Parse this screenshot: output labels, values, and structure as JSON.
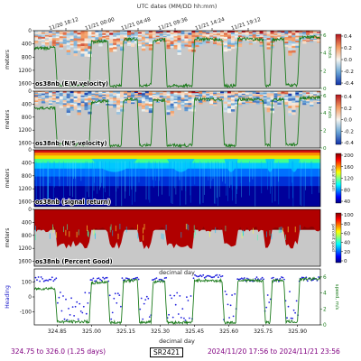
{
  "header": {
    "title": "UTC dates (MM/DD hh:mm)",
    "time_ticks": [
      "11/20 18:12",
      "11/21 00:00",
      "11/21 04:48",
      "11/21 09:36",
      "11/21 14:24",
      "11/21 19:12"
    ]
  },
  "chart_data": [
    {
      "type": "heatmap",
      "panel_label": "os38nb (E/W velocity)",
      "ylabel": "meters",
      "yticks": [
        0,
        400,
        800,
        1200,
        1600
      ],
      "ylim": [
        1750,
        0
      ],
      "colorbar": {
        "ticks": [
          "0.4",
          "0.2",
          "0.0",
          "-0.2",
          "-0.4"
        ],
        "range": [
          -0.4,
          0.4
        ],
        "colormap": "RdBu_r"
      },
      "right_axis": {
        "label": "knots",
        "ticks": [
          "6",
          "4",
          "2",
          "0"
        ],
        "range": [
          0,
          6.5
        ]
      },
      "overlay_series": {
        "name": "ship speed",
        "color": "#1a7a1a"
      }
    },
    {
      "type": "heatmap",
      "panel_label": "os38nb (N/S velocity)",
      "ylabel": "meters",
      "yticks": [
        0,
        400,
        800,
        1200,
        1600
      ],
      "ylim": [
        1750,
        0
      ],
      "colorbar": {
        "ticks": [
          "0.4",
          "0.2",
          "0.0",
          "-0.2",
          "-0.4"
        ],
        "range": [
          -0.4,
          0.4
        ],
        "colormap": "RdBu_r"
      },
      "right_axis": {
        "label": "knots",
        "ticks": [
          "6",
          "4",
          "2",
          "0"
        ],
        "range": [
          0,
          6.5
        ]
      },
      "overlay_series": {
        "name": "ship speed",
        "color": "#1a7a1a"
      }
    },
    {
      "type": "heatmap",
      "panel_label": "os38nb (signal return)",
      "ylabel": "meters",
      "yticks": [
        0,
        400,
        800,
        1200,
        1600
      ],
      "ylim": [
        1750,
        0
      ],
      "colorbar": {
        "label": "signal return",
        "ticks": [
          "200",
          "160",
          "120",
          "80",
          "40"
        ],
        "range": [
          20,
          210
        ],
        "colormap": "jet"
      }
    },
    {
      "type": "heatmap",
      "panel_label": "os38nb (Percent Good)",
      "ylabel": "meters",
      "yticks": [
        0,
        400,
        800,
        1200,
        1600
      ],
      "ylim": [
        1750,
        0
      ],
      "xlabel": "decimal day",
      "colorbar": {
        "label": "percent good",
        "ticks": [
          "100",
          "80",
          "60",
          "40",
          "20",
          "0"
        ],
        "range": [
          0,
          100
        ],
        "colormap": "jet"
      }
    },
    {
      "type": "line",
      "ylabel": "Heading",
      "ylabel_color": "#2020cc",
      "yticks": [
        "100",
        "0",
        "-100"
      ],
      "ylim": [
        -190,
        190
      ],
      "right_axis": {
        "label": "speed, m/s",
        "ticks": [
          "6",
          "4",
          "2",
          "0"
        ],
        "range": [
          0,
          7
        ]
      },
      "xlabel": "decimal day",
      "xticks": [
        "324.85",
        "325.00",
        "325.15",
        "325.30",
        "325.45",
        "325.60",
        "325.75",
        "325.90"
      ],
      "xlim": [
        324.75,
        326.0
      ],
      "series": [
        {
          "name": "heading",
          "color": "#2020dd",
          "style": "points"
        },
        {
          "name": "speed",
          "color": "#1a7a1a",
          "style": "line"
        }
      ]
    }
  ],
  "footer": {
    "left": "324.75 to 326.0 (1.25 days)",
    "center": "SR2421",
    "right": "2024/11/20 17:56 to 2024/11/21 23:56"
  }
}
